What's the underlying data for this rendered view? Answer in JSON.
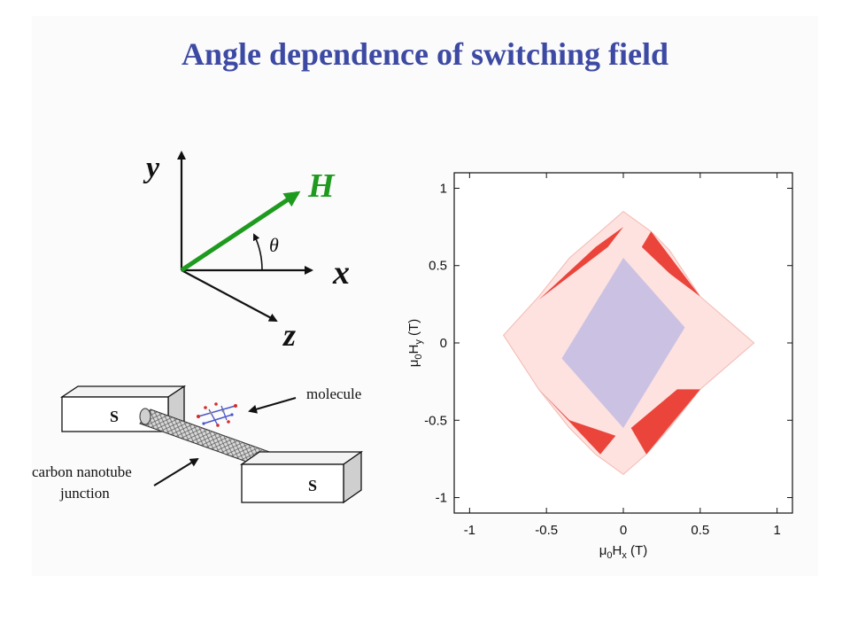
{
  "title": "Angle dependence of switching field",
  "colors": {
    "title": "#3d4aa3",
    "field_vector": "#1e9a1e",
    "positive": "#e8281e",
    "negative": "#8f9ae8"
  },
  "coordinate_diagram": {
    "y_label": "y",
    "x_label": "x",
    "z_label": "z",
    "field_label": "H",
    "angle_label": "θ"
  },
  "junction_diagram": {
    "electrode_left_label": "S",
    "electrode_right_label": "S",
    "molecule_label": "molecule",
    "nanotube_label_line1": "carbon nanotube",
    "nanotube_label_line2": "junction"
  },
  "chart_data": {
    "type": "heatmap",
    "xlabel_main": "μ",
    "xlabel_sub0": "0",
    "xlabel_mid": "H",
    "xlabel_sub1": "x",
    "xlabel_unit": " (T)",
    "ylabel_main": "μ",
    "ylabel_sub0": "0",
    "ylabel_mid": "H",
    "ylabel_sub1": "y",
    "ylabel_unit": " (T)",
    "xlim": [
      -1.1,
      1.1
    ],
    "ylim": [
      -1.1,
      1.1
    ],
    "x_ticks": [
      -1,
      -0.5,
      0,
      0.5,
      1
    ],
    "y_ticks": [
      -1,
      -0.5,
      0,
      0.5,
      1
    ],
    "x_tick_labels": [
      "-1",
      "-0.5",
      "0",
      "0.5",
      "1"
    ],
    "y_tick_labels": [
      "-1",
      "-0.5",
      "0",
      "0.5",
      "1"
    ],
    "switching_boundary": {
      "x": [
        0.0,
        0.18,
        0.3,
        0.5,
        0.85,
        0.5,
        0.3,
        0.15,
        0.0,
        -0.18,
        -0.35,
        -0.55,
        -0.78,
        -0.55,
        -0.35,
        -0.15
      ],
      "y": [
        0.85,
        0.72,
        0.6,
        0.3,
        0.0,
        -0.3,
        -0.55,
        -0.72,
        -0.85,
        -0.72,
        -0.55,
        -0.3,
        0.05,
        0.3,
        0.55,
        0.72
      ]
    },
    "strong_lobes": [
      {
        "quadrant": "upper-left",
        "x": [
          0.0,
          -0.1,
          -0.55,
          -0.18
        ],
        "y": [
          0.75,
          0.62,
          0.28,
          0.62
        ],
        "sign": "positive"
      },
      {
        "quadrant": "upper-right",
        "x": [
          0.18,
          0.5,
          0.3,
          0.12
        ],
        "y": [
          0.72,
          0.3,
          0.45,
          0.62
        ],
        "sign": "positive"
      },
      {
        "quadrant": "lower-left",
        "x": [
          -0.55,
          -0.15,
          -0.05,
          -0.35
        ],
        "y": [
          -0.3,
          -0.72,
          -0.6,
          -0.5
        ],
        "sign": "positive"
      },
      {
        "quadrant": "lower-right",
        "x": [
          0.15,
          0.5,
          0.35,
          0.05
        ],
        "y": [
          -0.72,
          -0.3,
          -0.3,
          -0.55
        ],
        "sign": "positive"
      }
    ],
    "negative_regions": [
      {
        "x": [
          0.0,
          0.4,
          0.0,
          -0.4
        ],
        "y": [
          0.55,
          0.1,
          -0.55,
          -0.1
        ],
        "sign": "negative"
      }
    ]
  }
}
